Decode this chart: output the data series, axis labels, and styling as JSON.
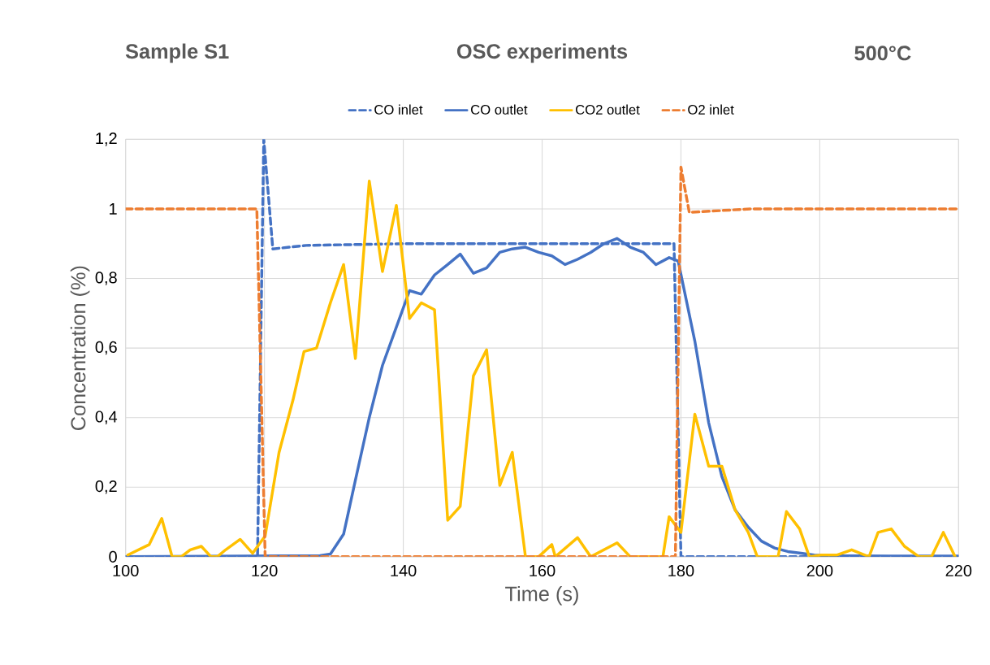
{
  "chart_data": {
    "type": "line",
    "title": "OSC experiments",
    "annotations": [
      "Sample S1",
      "500°C"
    ],
    "xlabel": "Time (s)",
    "ylabel": "Concentration (%)",
    "xlim": [
      100,
      220
    ],
    "xticks": [
      100,
      120,
      140,
      160,
      180,
      200,
      220
    ],
    "ylim": [
      0,
      1.2
    ],
    "yticks": [
      0,
      {
        "value": 0.2,
        "label": "0,2"
      },
      {
        "value": 0.4,
        "label": "0,4"
      },
      {
        "value": 0.6,
        "label": "0,6"
      },
      {
        "value": 0.8,
        "label": "0,8"
      },
      1,
      {
        "value": 1.2,
        "label": "1,2"
      }
    ],
    "grid": true,
    "legend": "top",
    "series": [
      {
        "name": "CO inlet",
        "color": "#4472c4",
        "line_style": "dashed",
        "x": [
          100,
          119.0,
          119.9,
          121.2,
          126,
          140,
          179.0,
          180.0,
          220
        ],
        "values": [
          0,
          0,
          1.2,
          0.885,
          0.895,
          0.9,
          0.9,
          0,
          0
        ]
      },
      {
        "name": "CO outlet",
        "color": "#4472c4",
        "line_style": "solid",
        "x": [
          100,
          128,
          129.5,
          131.4,
          133.1,
          135.1,
          137,
          139,
          140.9,
          142.6,
          144.5,
          146.4,
          148.2,
          150.1,
          152,
          153.9,
          155.7,
          157.6,
          159.5,
          161.4,
          163.3,
          165.1,
          167,
          168.9,
          170.8,
          172.7,
          174.6,
          176.4,
          178.3,
          179.6,
          182,
          184,
          185.9,
          187.8,
          189.7,
          191.6,
          193.5,
          195.4,
          197.3,
          199.2,
          201,
          210,
          220
        ],
        "values": [
          0,
          0.003,
          0.008,
          0.065,
          0.22,
          0.4,
          0.55,
          0.66,
          0.765,
          0.755,
          0.81,
          0.84,
          0.87,
          0.815,
          0.83,
          0.875,
          0.885,
          0.89,
          0.875,
          0.865,
          0.84,
          0.855,
          0.875,
          0.9,
          0.915,
          0.89,
          0.875,
          0.84,
          0.86,
          0.85,
          0.62,
          0.385,
          0.23,
          0.135,
          0.085,
          0.045,
          0.025,
          0.015,
          0.01,
          0.005,
          0.003,
          0.002,
          0.002
        ]
      },
      {
        "name": "CO2 outlet",
        "color": "#ffc000",
        "line_style": "solid",
        "x": [
          100.3,
          103.4,
          105.2,
          106.7,
          108,
          109.3,
          110.9,
          112.3,
          113.2,
          114.4,
          116.5,
          118.3,
          120.1,
          122.1,
          124.1,
          125.7,
          127.5,
          129.5,
          131.4,
          133.1,
          135.1,
          137,
          139,
          140.9,
          142.6,
          144.5,
          146.4,
          148.2,
          150.1,
          152,
          153.9,
          155.7,
          157.6,
          159.5,
          161.4,
          161.9,
          165.1,
          167,
          170.8,
          172.7,
          177.4,
          178.3,
          180,
          182,
          184,
          185.9,
          187.8,
          189.7,
          191,
          194,
          195.2,
          197.1,
          198.5,
          200.2,
          202.5,
          204.6,
          207.1,
          208.4,
          210.3,
          212.2,
          214.3,
          216.1,
          217.8,
          219.5
        ],
        "values": [
          0.005,
          0.035,
          0.11,
          0,
          0,
          0.02,
          0.03,
          0,
          0,
          0.02,
          0.05,
          0.01,
          0.06,
          0.3,
          0.45,
          0.59,
          0.6,
          0.73,
          0.84,
          0.57,
          1.08,
          0.82,
          1.01,
          0.685,
          0.73,
          0.71,
          0.105,
          0.145,
          0.52,
          0.595,
          0.205,
          0.3,
          0,
          0,
          0.035,
          0,
          0.055,
          0,
          0.04,
          0,
          0,
          0.115,
          0.07,
          0.41,
          0.26,
          0.26,
          0.135,
          0.07,
          0,
          0,
          0.13,
          0.08,
          0,
          0.005,
          0.005,
          0.02,
          0,
          0.07,
          0.08,
          0.03,
          0,
          0,
          0.07,
          0
        ]
      },
      {
        "name": "O2 inlet",
        "color": "#ed7d31",
        "line_style": "dashed",
        "x": [
          100,
          118.9,
          120.1,
          179.2,
          180.0,
          181.2,
          190,
          220
        ],
        "values": [
          1,
          1,
          0,
          0,
          1.12,
          0.99,
          1,
          1
        ]
      }
    ]
  }
}
